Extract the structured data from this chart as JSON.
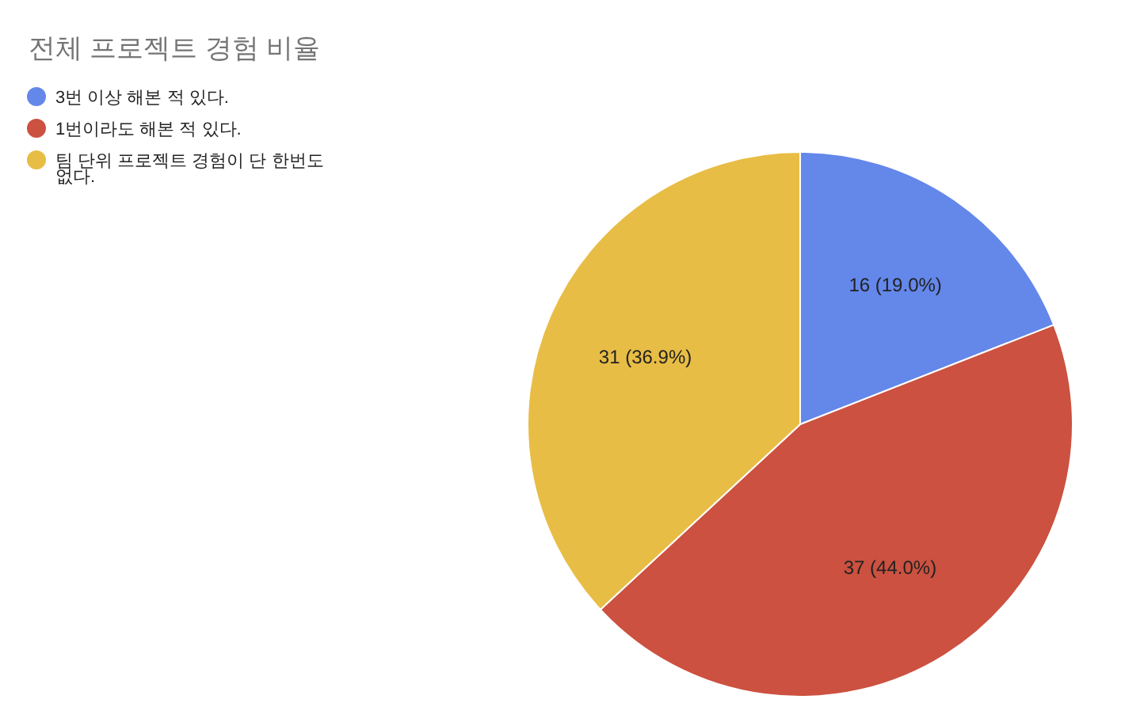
{
  "chart_data": {
    "type": "pie",
    "title": "전체 프로젝트 경험 비율",
    "categories": [
      "3번 이상 해본 적 있다.",
      "1번이라도 해본 적 있다.",
      "팀 단위 프로젝트 경험이 단 한번도 없다."
    ],
    "values": [
      16,
      37,
      31
    ],
    "colors": [
      "#6487ea",
      "#cc5140",
      "#e8bd45"
    ],
    "value_labels": [
      "16 (19.0%)",
      "37 (44.0%)",
      "31 (36.9%)"
    ],
    "legend": "top left"
  }
}
